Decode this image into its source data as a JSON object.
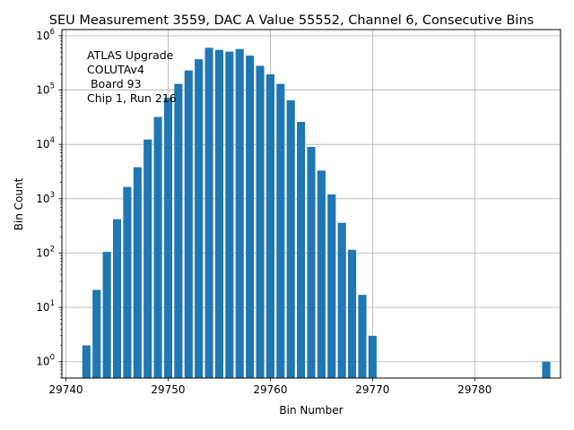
{
  "chart_data": {
    "type": "bar",
    "title": "SEU Measurement 3559, DAC A Value 55552, Channel 6, Consecutive Bins",
    "xlabel": "Bin Number",
    "ylabel": "Bin Count",
    "yscale": "log",
    "grid": true,
    "xlim": [
      29739.6,
      29788.4
    ],
    "ylim": [
      0.5,
      1300000
    ],
    "bar_width": 0.8,
    "bar_color": "#1f77b4",
    "x_ticks": [
      29740,
      29750,
      29760,
      29770,
      29780
    ],
    "y_ticks": [
      {
        "value": 1,
        "exp": "0"
      },
      {
        "value": 10,
        "exp": "1"
      },
      {
        "value": 100,
        "exp": "2"
      },
      {
        "value": 1000,
        "exp": "3"
      },
      {
        "value": 10000,
        "exp": "4"
      },
      {
        "value": 100000,
        "exp": "5"
      },
      {
        "value": 1000000,
        "exp": "6"
      }
    ],
    "y_tick_base": "10",
    "annotation": [
      "ATLAS Upgrade",
      "COLUTAv4",
      " Board 93",
      "Chip 1, Run 216"
    ],
    "x": [
      29742,
      29743,
      29744,
      29745,
      29746,
      29747,
      29748,
      29749,
      29750,
      29751,
      29752,
      29753,
      29754,
      29755,
      29756,
      29757,
      29758,
      29759,
      29760,
      29761,
      29762,
      29763,
      29764,
      29765,
      29766,
      29767,
      29768,
      29769,
      29770,
      29787
    ],
    "values": [
      2,
      21,
      105,
      420,
      1650,
      3800,
      12300,
      32000,
      72000,
      130000,
      230000,
      370000,
      600000,
      550000,
      510000,
      570000,
      430000,
      280000,
      195000,
      130000,
      65000,
      26000,
      9000,
      3300,
      1200,
      360,
      115,
      17,
      3,
      1
    ]
  }
}
